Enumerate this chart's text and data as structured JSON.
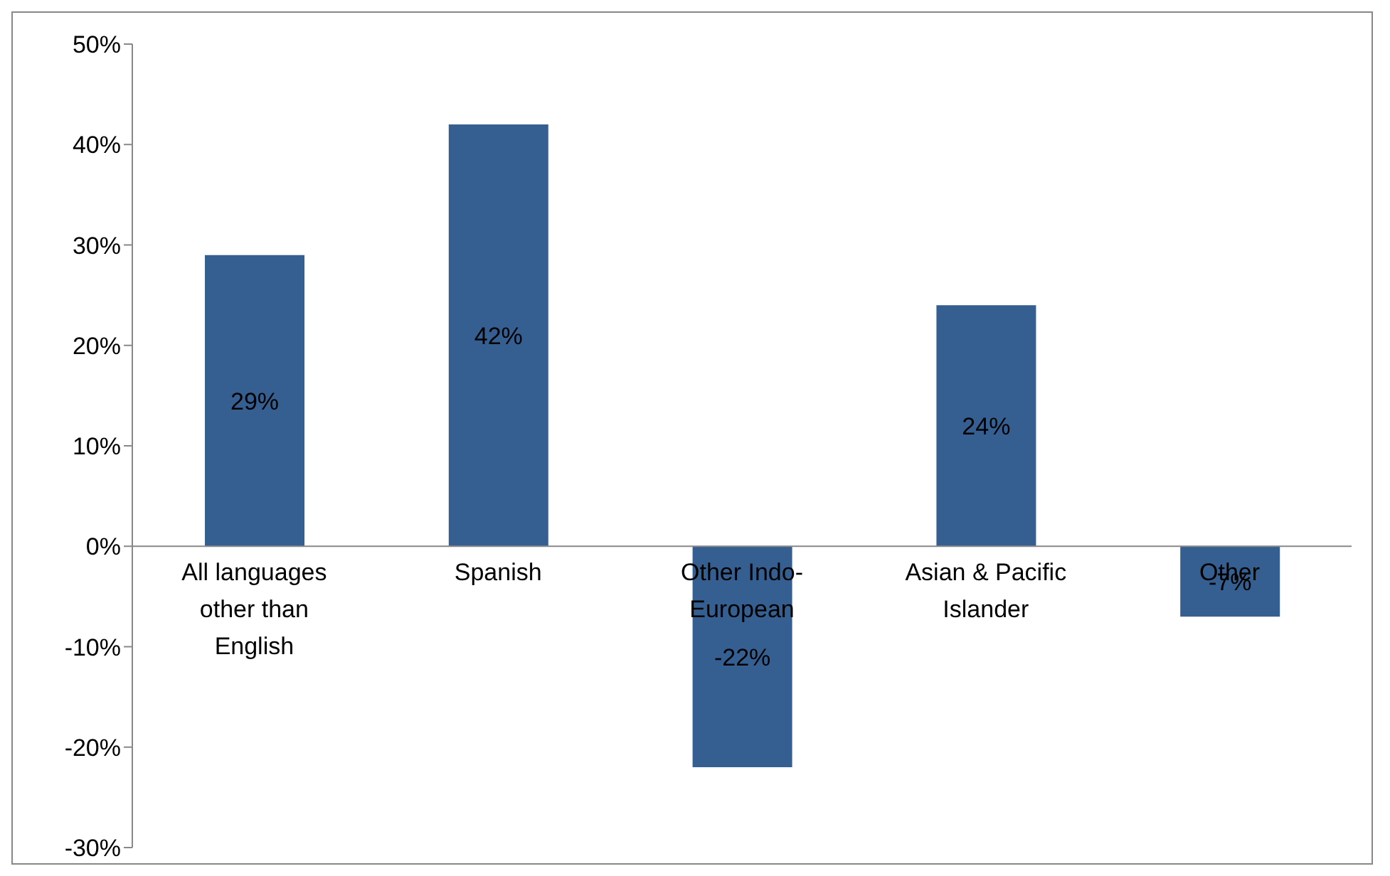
{
  "chart_data": {
    "type": "bar",
    "categories": [
      "All languages other than English",
      "Spanish",
      "Other Indo-European",
      "Asian & Pacific Islander",
      "Other"
    ],
    "values": [
      29,
      42,
      -22,
      24,
      -7
    ],
    "value_labels": [
      "29%",
      "42%",
      "-22%",
      "24%",
      "-7%"
    ],
    "color": "#365f91",
    "ylim": [
      -30,
      50
    ],
    "yticks": [
      {
        "value": -30,
        "label": "-30%"
      },
      {
        "value": -20,
        "label": "-20%"
      },
      {
        "value": -10,
        "label": "-10%"
      },
      {
        "value": 0,
        "label": "0%"
      },
      {
        "value": 10,
        "label": "10%"
      },
      {
        "value": 20,
        "label": "20%"
      },
      {
        "value": 30,
        "label": "30%"
      },
      {
        "value": 40,
        "label": "40%"
      },
      {
        "value": 50,
        "label": "50%"
      }
    ],
    "grid": false
  }
}
